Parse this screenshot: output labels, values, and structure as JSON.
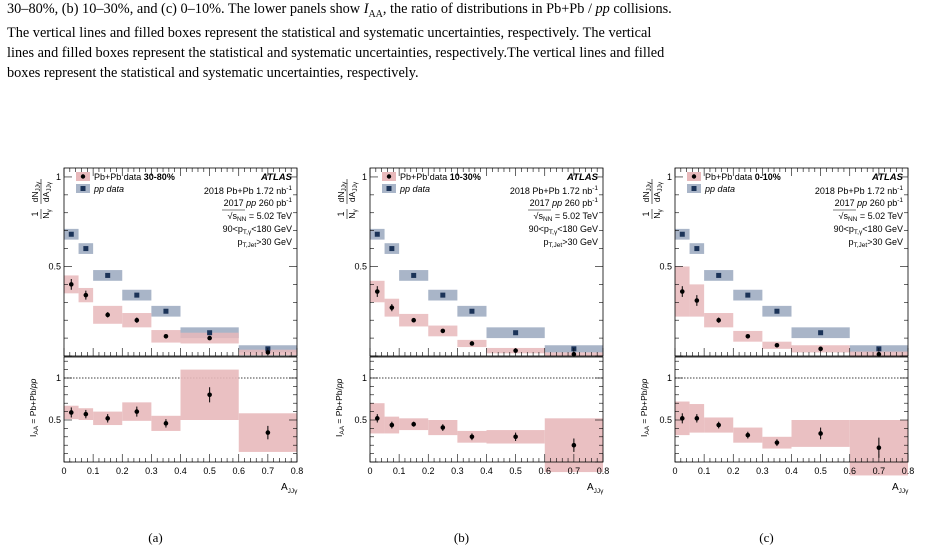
{
  "caption": {
    "lines": [
      "30–80%, (b) 10–30%, and (c) 0–10%. The lower panels show ",
      "The vertical lines and filled boxes represent the statistical and systematic uncertainties, respectively. The vertical",
      "lines and filled boxes represent the statistical and systematic uncertainties, respectively.The vertical lines and filled",
      "boxes represent the statistical and systematic uncertainties, respectively."
    ],
    "iaa_symbol": "I",
    "iaa_sub": "AA",
    "line1_tail": ", the ratio of distributions in Pb+Pb / ",
    "pp": "pp",
    "line1_end": " collisions."
  },
  "figure": {
    "atlas": "ATLAS",
    "legend_pbpb": "Pb+Pb data",
    "legend_pp": "pp data",
    "info": {
      "pbpb_lumi": "2018 Pb+Pb 1.72 nb",
      "pp_lumi_pre": "2017 ",
      "pp_lumi_pp": "pp",
      "pp_lumi_post": " 260 pb",
      "lumi_sup": "-1",
      "sqrts": "s",
      "sqrts_sub": "NN",
      "sqrts_val": " = 5.02 TeV",
      "ptg_pre": "90<p",
      "ptg_sub": "T,γ",
      "ptg_post": "<180 GeV",
      "ptj_pre": "p",
      "ptj_sub": "T,Jet",
      "ptj_post": ">30 GeV"
    },
    "ylabel_top": {
      "num": "dN",
      "num_sub": "JJγ",
      "den": "N",
      "den_sub": "γ",
      "den2": "dA",
      "den2_sub": "JJγ",
      "one": "1"
    },
    "ylabel_bottom": {
      "main": "I",
      "sub": "AA",
      "rest": " = Pb+Pb/",
      "pp": "pp"
    },
    "xlabel": {
      "main": "A",
      "sub": "JJγ"
    },
    "xticks": [
      "0",
      "0.1",
      "0.2",
      "0.3",
      "0.4",
      "0.5",
      "0.6",
      "0.7",
      "0.8"
    ],
    "yticks_top": [
      "0.5",
      "1"
    ],
    "yticks_bottom": [
      "0.5",
      "1"
    ]
  },
  "chart_data": [
    {
      "type": "scatter",
      "panel_label": "(a)",
      "centrality": "30-80%",
      "bins": [
        [
          0,
          0.05
        ],
        [
          0.05,
          0.1
        ],
        [
          0.1,
          0.2
        ],
        [
          0.2,
          0.3
        ],
        [
          0.3,
          0.4
        ],
        [
          0.4,
          0.6
        ],
        [
          0.6,
          0.8
        ]
      ],
      "x": [
        0.025,
        0.075,
        0.15,
        0.25,
        0.35,
        0.5,
        0.7
      ],
      "pbpb": [
        0.4,
        0.34,
        0.23,
        0.2,
        0.11,
        0.1,
        0.02
      ],
      "pbpb_stat": [
        0.03,
        0.025,
        0.015,
        0.015,
        0.01,
        0.01,
        0.008
      ],
      "pbpb_syst": [
        0.05,
        0.04,
        0.05,
        0.04,
        0.035,
        0.03,
        0.015
      ],
      "pp": [
        0.68,
        0.6,
        0.45,
        0.34,
        0.25,
        0.13,
        0.04
      ],
      "pp_syst": [
        0.02,
        0.02,
        0.02,
        0.02,
        0.02,
        0.02,
        0.01
      ],
      "iaa": [
        0.59,
        0.57,
        0.52,
        0.6,
        0.46,
        0.8,
        0.35
      ],
      "iaa_stat": [
        0.06,
        0.05,
        0.05,
        0.06,
        0.05,
        0.09,
        0.08
      ],
      "iaa_syst": [
        0.08,
        0.07,
        0.08,
        0.11,
        0.09,
        0.3,
        0.23
      ],
      "ylim_top": [
        0,
        1.05
      ],
      "ylim_bottom": [
        0,
        1.25
      ],
      "xlim": [
        0,
        0.8
      ]
    },
    {
      "type": "scatter",
      "panel_label": "(b)",
      "centrality": "10-30%",
      "bins": [
        [
          0,
          0.05
        ],
        [
          0.05,
          0.1
        ],
        [
          0.1,
          0.2
        ],
        [
          0.2,
          0.3
        ],
        [
          0.3,
          0.4
        ],
        [
          0.4,
          0.6
        ],
        [
          0.6,
          0.8
        ]
      ],
      "x": [
        0.025,
        0.075,
        0.15,
        0.25,
        0.35,
        0.5,
        0.7
      ],
      "pbpb": [
        0.36,
        0.27,
        0.2,
        0.14,
        0.07,
        0.03,
        0.01
      ],
      "pbpb_stat": [
        0.03,
        0.02,
        0.012,
        0.01,
        0.008,
        0.006,
        0.005
      ],
      "pbpb_syst": [
        0.06,
        0.05,
        0.035,
        0.03,
        0.02,
        0.015,
        0.01
      ],
      "pp": [
        0.68,
        0.6,
        0.45,
        0.34,
        0.25,
        0.13,
        0.04
      ],
      "pp_syst": [
        0.02,
        0.02,
        0.02,
        0.02,
        0.02,
        0.02,
        0.01
      ],
      "iaa": [
        0.52,
        0.44,
        0.45,
        0.41,
        0.3,
        0.3,
        0.2
      ],
      "iaa_stat": [
        0.05,
        0.04,
        0.03,
        0.04,
        0.04,
        0.05,
        0.08
      ],
      "iaa_syst": [
        0.18,
        0.1,
        0.07,
        0.09,
        0.07,
        0.08,
        0.32
      ],
      "ylim_top": [
        0,
        1.05
      ],
      "ylim_bottom": [
        0,
        1.25
      ],
      "xlim": [
        0,
        0.8
      ]
    },
    {
      "type": "scatter",
      "panel_label": "(c)",
      "centrality": "0-10%",
      "bins": [
        [
          0,
          0.05
        ],
        [
          0.05,
          0.1
        ],
        [
          0.1,
          0.2
        ],
        [
          0.2,
          0.3
        ],
        [
          0.3,
          0.4
        ],
        [
          0.4,
          0.6
        ],
        [
          0.6,
          0.8
        ]
      ],
      "x": [
        0.025,
        0.075,
        0.15,
        0.25,
        0.35,
        0.5,
        0.7
      ],
      "pbpb": [
        0.36,
        0.31,
        0.2,
        0.11,
        0.06,
        0.04,
        0.01
      ],
      "pbpb_stat": [
        0.03,
        0.03,
        0.015,
        0.01,
        0.008,
        0.006,
        0.005
      ],
      "pbpb_syst": [
        0.14,
        0.09,
        0.04,
        0.03,
        0.02,
        0.02,
        0.015
      ],
      "pp": [
        0.68,
        0.6,
        0.45,
        0.34,
        0.25,
        0.13,
        0.04
      ],
      "pp_syst": [
        0.02,
        0.02,
        0.02,
        0.02,
        0.02,
        0.02,
        0.01
      ],
      "iaa": [
        0.52,
        0.52,
        0.44,
        0.32,
        0.23,
        0.34,
        0.17
      ],
      "iaa_stat": [
        0.06,
        0.05,
        0.04,
        0.04,
        0.04,
        0.07,
        0.12
      ],
      "iaa_syst": [
        0.2,
        0.17,
        0.09,
        0.09,
        0.07,
        0.16,
        0.33
      ],
      "ylim_top": [
        0,
        1.05
      ],
      "ylim_bottom": [
        0,
        1.25
      ],
      "xlim": [
        0,
        0.8
      ]
    }
  ],
  "colors": {
    "pbpb_box": "#e8b9bb",
    "pp_box": "#a9b5c8",
    "pp_marker": "#1b3358",
    "marker": "#000000"
  }
}
